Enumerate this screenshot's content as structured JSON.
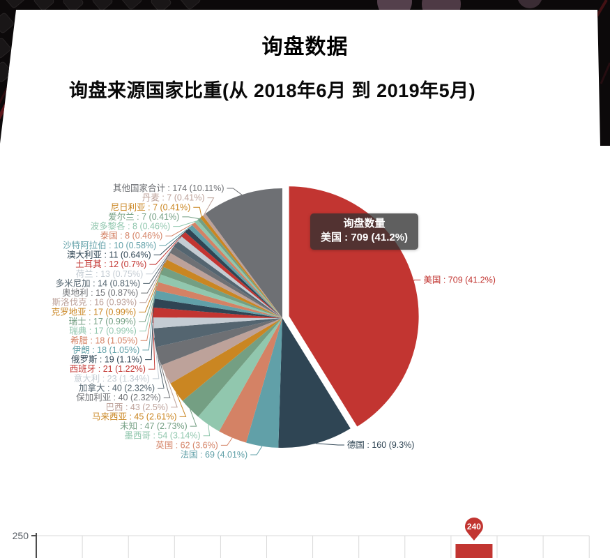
{
  "page": {
    "title": "询盘数据",
    "subtitle": "询盘来源国家比重(从 2018年6月 到 2019年5月)"
  },
  "tooltip": {
    "title": "询盘数量",
    "content": "美国 : 709 (41.2%)"
  },
  "chart_data": [
    {
      "type": "pie",
      "title": "询盘来源国家比重(从 2018年6月 到 2019年5月)",
      "series_name": "询盘数量",
      "label_format": "{name} : {value} ({pct}%)",
      "start_angle": "top, clockwise",
      "selected_slice": "美国",
      "palette": [
        "#c23531",
        "#2f4554",
        "#61a0a8",
        "#d48265",
        "#91c7ae",
        "#749f83",
        "#ca8622",
        "#bda29a",
        "#6e7074",
        "#546570",
        "#c4ccd3"
      ],
      "slices": [
        {
          "name": "美国",
          "value": 709,
          "pct": "41.2"
        },
        {
          "name": "德国",
          "value": 160,
          "pct": "9.3"
        },
        {
          "name": "法国",
          "value": 69,
          "pct": "4.01"
        },
        {
          "name": "英国",
          "value": 62,
          "pct": "3.6"
        },
        {
          "name": "墨西哥",
          "value": 54,
          "pct": "3.14"
        },
        {
          "name": "未知",
          "value": 47,
          "pct": "2.73"
        },
        {
          "name": "马来西亚",
          "value": 45,
          "pct": "2.61"
        },
        {
          "name": "巴西",
          "value": 43,
          "pct": "2.5"
        },
        {
          "name": "保加利亚",
          "value": 40,
          "pct": "2.32"
        },
        {
          "name": "加拿大",
          "value": 40,
          "pct": "2.32"
        },
        {
          "name": "意大利",
          "value": 23,
          "pct": "1.34"
        },
        {
          "name": "西班牙",
          "value": 21,
          "pct": "1.22"
        },
        {
          "name": "俄罗斯",
          "value": 19,
          "pct": "1.1"
        },
        {
          "name": "伊朗",
          "value": 18,
          "pct": "1.05"
        },
        {
          "name": "希腊",
          "value": 18,
          "pct": "1.05"
        },
        {
          "name": "瑞典",
          "value": 17,
          "pct": "0.99"
        },
        {
          "name": "瑞士",
          "value": 17,
          "pct": "0.99"
        },
        {
          "name": "克罗地亚",
          "value": 17,
          "pct": "0.99"
        },
        {
          "name": "斯洛伐克",
          "value": 16,
          "pct": "0.93"
        },
        {
          "name": "奥地利",
          "value": 15,
          "pct": "0.87"
        },
        {
          "name": "多米尼加",
          "value": 14,
          "pct": "0.81"
        },
        {
          "name": "荷兰",
          "value": 13,
          "pct": "0.75"
        },
        {
          "name": "土耳其",
          "value": 12,
          "pct": "0.7"
        },
        {
          "name": "澳大利亚",
          "value": 11,
          "pct": "0.64"
        },
        {
          "name": "沙特阿拉伯",
          "value": 10,
          "pct": "0.58"
        },
        {
          "name": "泰国",
          "value": 8,
          "pct": "0.46"
        },
        {
          "name": "波多黎各",
          "value": 8,
          "pct": "0.46"
        },
        {
          "name": "爱尔兰",
          "value": 7,
          "pct": "0.41"
        },
        {
          "name": "尼日利亚",
          "value": 7,
          "pct": "0.41"
        },
        {
          "name": "丹麦",
          "value": 7,
          "pct": "0.41"
        },
        {
          "name": "其他国家合计",
          "value": 174,
          "pct": "10.11"
        }
      ]
    },
    {
      "type": "bar",
      "y_axis_visible_tick": "250",
      "columns": 12,
      "grid": true,
      "visible_bar": {
        "column": 10,
        "value": 240,
        "marker_label": "240",
        "color": "#c23531"
      },
      "note_visible_region": "only top of chart visible at page bottom"
    }
  ]
}
